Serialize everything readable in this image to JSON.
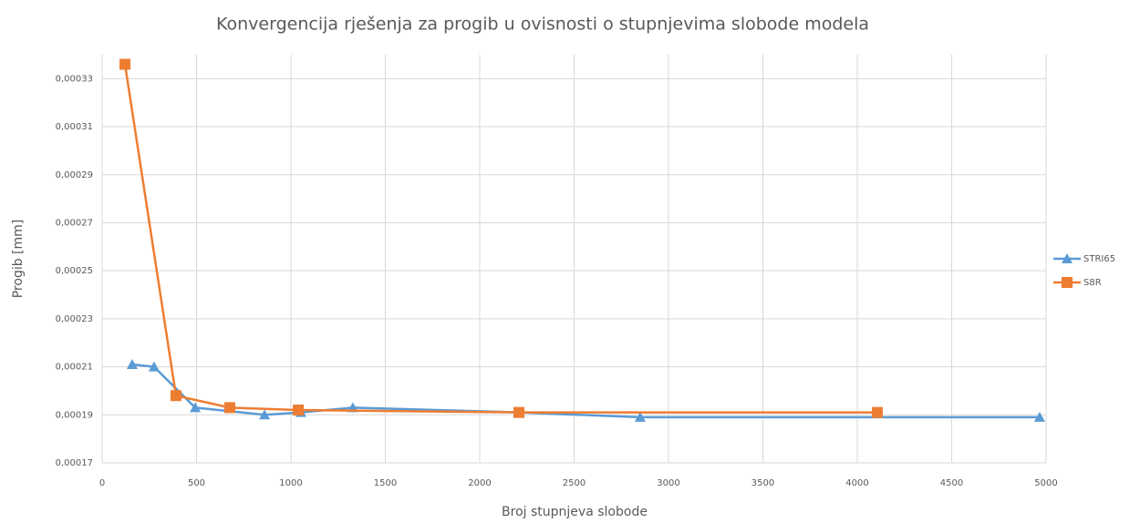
{
  "chart_data": {
    "type": "line",
    "title": "Konvergencija rješenja za progib u ovisnosti o stupnjevima slobode modela",
    "x_label": "Broj stupnjeva slobode",
    "y_label": "Progib [mm]",
    "xlim": [
      0,
      5000
    ],
    "xticks": [
      0,
      500,
      1000,
      1500,
      2000,
      2500,
      3000,
      3500,
      4000,
      4500,
      5000
    ],
    "ylim": [
      0.00017,
      0.00034
    ],
    "yticks": [
      {
        "value": 0.00017,
        "label": "0,00017"
      },
      {
        "value": 0.00019,
        "label": "0,00019"
      },
      {
        "value": 0.00021,
        "label": "0,00021"
      },
      {
        "value": 0.00023,
        "label": "0,00023"
      },
      {
        "value": 0.00025,
        "label": "0,00025"
      },
      {
        "value": 0.00027,
        "label": "0,00027"
      },
      {
        "value": 0.00029,
        "label": "0,00029"
      },
      {
        "value": 0.00031,
        "label": "0,00031"
      },
      {
        "value": 0.00033,
        "label": "0,00033"
      }
    ],
    "grid": true,
    "legend": "right",
    "series": [
      {
        "name": "STRI65",
        "color": "#5b9bd5",
        "marker": "triangle",
        "x": [
          159,
          275,
          493,
          860,
          1053,
          1328,
          2208,
          2850,
          4966
        ],
        "values": [
          0.000211,
          0.00021,
          0.000193,
          0.00019,
          0.000191,
          0.000193,
          0.000191,
          0.000189,
          0.000189
        ]
      },
      {
        "name": "S8R",
        "color": "#ed7d31",
        "marker": "square",
        "x": [
          121,
          391,
          676,
          1039,
          2208,
          4106
        ],
        "values": [
          0.000336,
          0.000198,
          0.000193,
          0.000192,
          0.000191,
          0.000191
        ]
      }
    ]
  }
}
